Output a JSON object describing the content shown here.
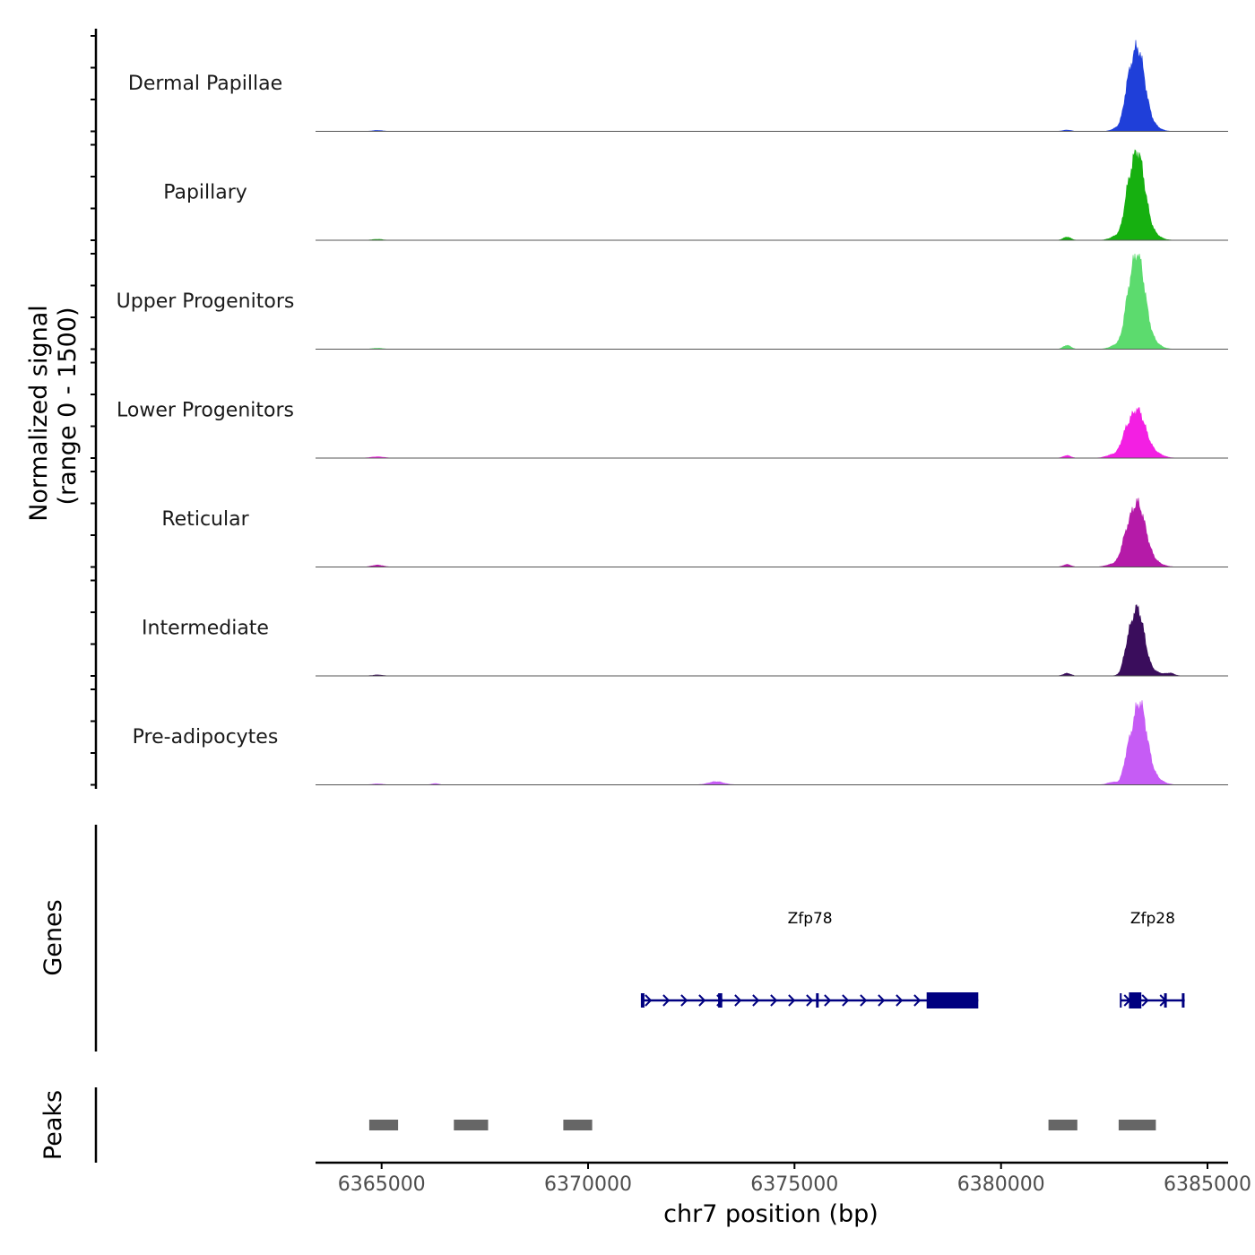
{
  "colors": {
    "gene": "#000080",
    "peak": "#666666",
    "axis": "#000000",
    "baseline": "#555555"
  },
  "chart_data": {
    "type": "area",
    "title": "",
    "xlabel": "chr7 position (bp)",
    "ylabel": [
      "Normalized signal",
      "(range 0 - 1500)"
    ],
    "signal_range": [
      0,
      1500
    ],
    "xlim": [
      6363400,
      6385500
    ],
    "x_ticks": [
      6365000,
      6370000,
      6375000,
      6380000,
      6385000
    ],
    "x_tick_labels": [
      "6365000",
      "6370000",
      "6375000",
      "6380000",
      "6385000"
    ],
    "series": [
      {
        "name": "Dermal Papillae",
        "color": "#1f3fd9",
        "peaks": [
          {
            "center": 6383300,
            "width": 180,
            "height": 1300
          },
          {
            "center": 6383050,
            "width": 90,
            "height": 250
          },
          {
            "center": 6383700,
            "width": 160,
            "height": 60
          },
          {
            "center": 6382800,
            "width": 120,
            "height": 40
          },
          {
            "center": 6381600,
            "width": 100,
            "height": 20
          },
          {
            "center": 6364900,
            "width": 120,
            "height": 15
          }
        ]
      },
      {
        "name": "Papillary",
        "color": "#16b010",
        "peaks": [
          {
            "center": 6383300,
            "width": 180,
            "height": 1380
          },
          {
            "center": 6383050,
            "width": 90,
            "height": 250
          },
          {
            "center": 6383700,
            "width": 170,
            "height": 70
          },
          {
            "center": 6382800,
            "width": 150,
            "height": 60
          },
          {
            "center": 6381600,
            "width": 90,
            "height": 50
          },
          {
            "center": 6364900,
            "width": 120,
            "height": 15
          }
        ]
      },
      {
        "name": "Upper Progenitors",
        "color": "#5cdb6e",
        "peaks": [
          {
            "center": 6383300,
            "width": 180,
            "height": 1500
          },
          {
            "center": 6383050,
            "width": 90,
            "height": 220
          },
          {
            "center": 6383700,
            "width": 170,
            "height": 80
          },
          {
            "center": 6382800,
            "width": 150,
            "height": 60
          },
          {
            "center": 6381600,
            "width": 90,
            "height": 60
          },
          {
            "center": 6364900,
            "width": 120,
            "height": 15
          }
        ]
      },
      {
        "name": "Lower Progenitors",
        "color": "#f31fe3",
        "peaks": [
          {
            "center": 6383300,
            "width": 200,
            "height": 750
          },
          {
            "center": 6383000,
            "width": 110,
            "height": 180
          },
          {
            "center": 6383750,
            "width": 180,
            "height": 60
          },
          {
            "center": 6382700,
            "width": 150,
            "height": 50
          },
          {
            "center": 6381600,
            "width": 90,
            "height": 40
          },
          {
            "center": 6364900,
            "width": 150,
            "height": 20
          }
        ]
      },
      {
        "name": "Reticular",
        "color": "#b51aa8",
        "peaks": [
          {
            "center": 6383300,
            "width": 200,
            "height": 990
          },
          {
            "center": 6383000,
            "width": 110,
            "height": 190
          },
          {
            "center": 6383750,
            "width": 180,
            "height": 50
          },
          {
            "center": 6382700,
            "width": 150,
            "height": 40
          },
          {
            "center": 6381600,
            "width": 90,
            "height": 40
          },
          {
            "center": 6364900,
            "width": 130,
            "height": 30
          }
        ]
      },
      {
        "name": "Intermediate",
        "color": "#3a0d5c",
        "peaks": [
          {
            "center": 6383300,
            "width": 170,
            "height": 1050
          },
          {
            "center": 6383050,
            "width": 90,
            "height": 200
          },
          {
            "center": 6383750,
            "width": 160,
            "height": 50
          },
          {
            "center": 6384100,
            "width": 100,
            "height": 40
          },
          {
            "center": 6381600,
            "width": 90,
            "height": 40
          },
          {
            "center": 6364900,
            "width": 120,
            "height": 15
          }
        ]
      },
      {
        "name": "Pre-adipocytes",
        "color": "#c65cf5",
        "peaks": [
          {
            "center": 6383350,
            "width": 180,
            "height": 1280
          },
          {
            "center": 6383050,
            "width": 90,
            "height": 240
          },
          {
            "center": 6383750,
            "width": 180,
            "height": 80
          },
          {
            "center": 6382700,
            "width": 120,
            "height": 40
          },
          {
            "center": 6373100,
            "width": 180,
            "height": 50
          },
          {
            "center": 6366300,
            "width": 80,
            "height": 20
          },
          {
            "center": 6364900,
            "width": 120,
            "height": 15
          }
        ]
      }
    ],
    "gene_track": {
      "label": "Genes",
      "genes": [
        {
          "name": "Zfp78",
          "start": 6371300,
          "end": 6379450,
          "strand": "+",
          "exons": [
            [
              6371300,
              6371330
            ],
            [
              6373150,
              6373250
            ],
            [
              6375520,
              6375570
            ],
            [
              6378200,
              6379450
            ]
          ]
        },
        {
          "name": "Zfp28",
          "start": 6382900,
          "end": 6384450,
          "strand": "+",
          "exons": [
            [
              6383100,
              6383400
            ],
            [
              6383950,
              6383990
            ],
            [
              6384380,
              6384420
            ]
          ]
        }
      ]
    },
    "peak_track": {
      "label": "Peaks",
      "peaks": [
        [
          6364700,
          6365400
        ],
        [
          6366750,
          6367580
        ],
        [
          6369400,
          6370100
        ],
        [
          6381150,
          6381850
        ],
        [
          6382850,
          6383750
        ]
      ]
    }
  }
}
